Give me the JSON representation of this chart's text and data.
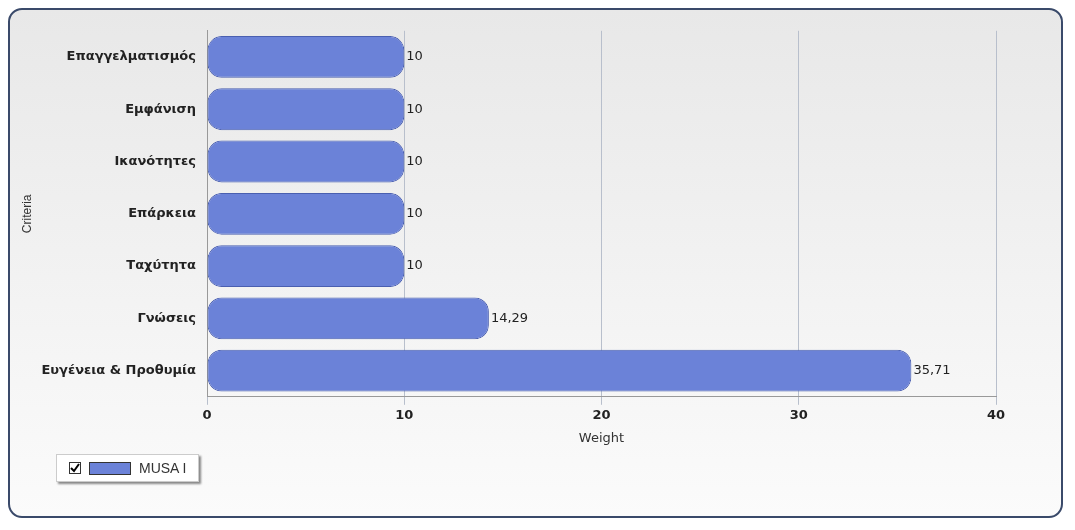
{
  "chart_data": {
    "type": "bar",
    "orientation": "horizontal",
    "xlabel": "Weight",
    "ylabel": "Criteria",
    "categories": [
      "Επαγγελματισμός",
      "Εμφάνιση",
      "Ικανότητες",
      "Επάρκεια",
      "Ταχύτητα",
      "Γνώσεις",
      "Ευγένεια & Προθυμία"
    ],
    "series": [
      {
        "name": "MUSA I",
        "color": "#6b82d8",
        "values": [
          10,
          10,
          10,
          10,
          10,
          14.29,
          35.71
        ],
        "value_labels": [
          "10",
          "10",
          "10",
          "10",
          "10",
          "14,29",
          "35,71"
        ]
      }
    ],
    "xlim": [
      0,
      40
    ],
    "xticks": [
      0,
      10,
      20,
      30,
      40
    ],
    "grid": "x",
    "legend": "bottom left"
  }
}
